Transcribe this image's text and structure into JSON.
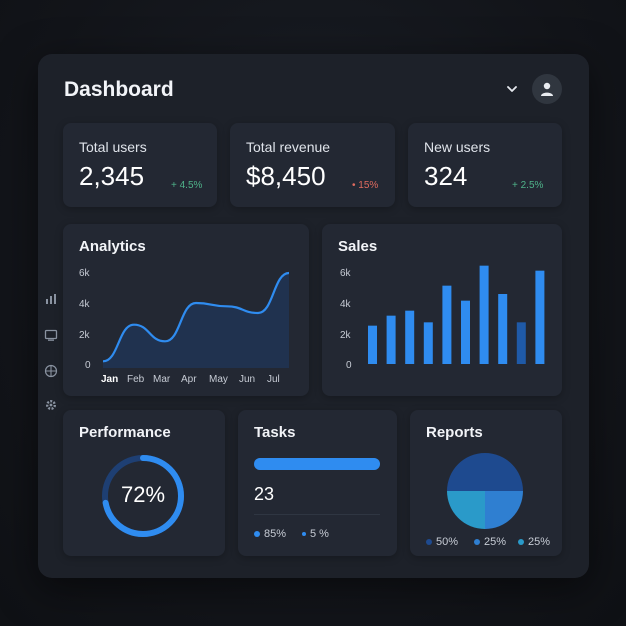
{
  "header": {
    "title": "Dashboard"
  },
  "stats": [
    {
      "label": "Total users",
      "value": "2,345",
      "delta": "+ 4.5%",
      "delta_color": "#4fb38a"
    },
    {
      "label": "Total revenue",
      "value": "$8,450",
      "delta": "• 15%",
      "delta_color": "#e06b5f"
    },
    {
      "label": "New users",
      "value": "324",
      "delta": "+ 2.5%",
      "delta_color": "#4fb38a"
    }
  ],
  "sidebar": {
    "icons": [
      "bar-chart-icon",
      "monitor-icon",
      "globe-icon",
      "gear-icon"
    ]
  },
  "analytics": {
    "title": "Analytics",
    "chart_data": {
      "type": "area",
      "title": "Analytics",
      "categories": [
        "Jan",
        "Feb",
        "Mar",
        "Apr",
        "May",
        "Jun",
        "Jul"
      ],
      "series": [
        {
          "values": [
            400,
            2600,
            1600,
            3900,
            3700,
            3300,
            5700
          ]
        }
      ],
      "yticks": [
        "6k",
        "4k",
        "2k",
        "0"
      ],
      "ylim": [
        0,
        6000
      ]
    }
  },
  "sales": {
    "title": "Sales",
    "chart_data": {
      "type": "bar",
      "title": "Sales",
      "values": [
        2300,
        2900,
        3200,
        2500,
        4700,
        3800,
        5900,
        4200,
        2500,
        5600
      ],
      "yticks": [
        "6k",
        "4k",
        "2k",
        "0"
      ],
      "ylim": [
        0,
        6000
      ]
    }
  },
  "performance": {
    "title": "Performance",
    "value": "72%",
    "fraction": 0.72
  },
  "tasks": {
    "title": "Tasks",
    "count": "23",
    "progress": 1.0,
    "legend": [
      "85%",
      "5 %"
    ]
  },
  "reports": {
    "title": "Reports",
    "chart_data": {
      "type": "pie",
      "title": "Reports",
      "values": [
        50,
        25,
        25
      ],
      "labels": [
        "50%",
        "25%",
        "25%"
      ],
      "colors": [
        "#1e4a8f",
        "#2f7fd1",
        "#2a9ac9"
      ]
    }
  }
}
